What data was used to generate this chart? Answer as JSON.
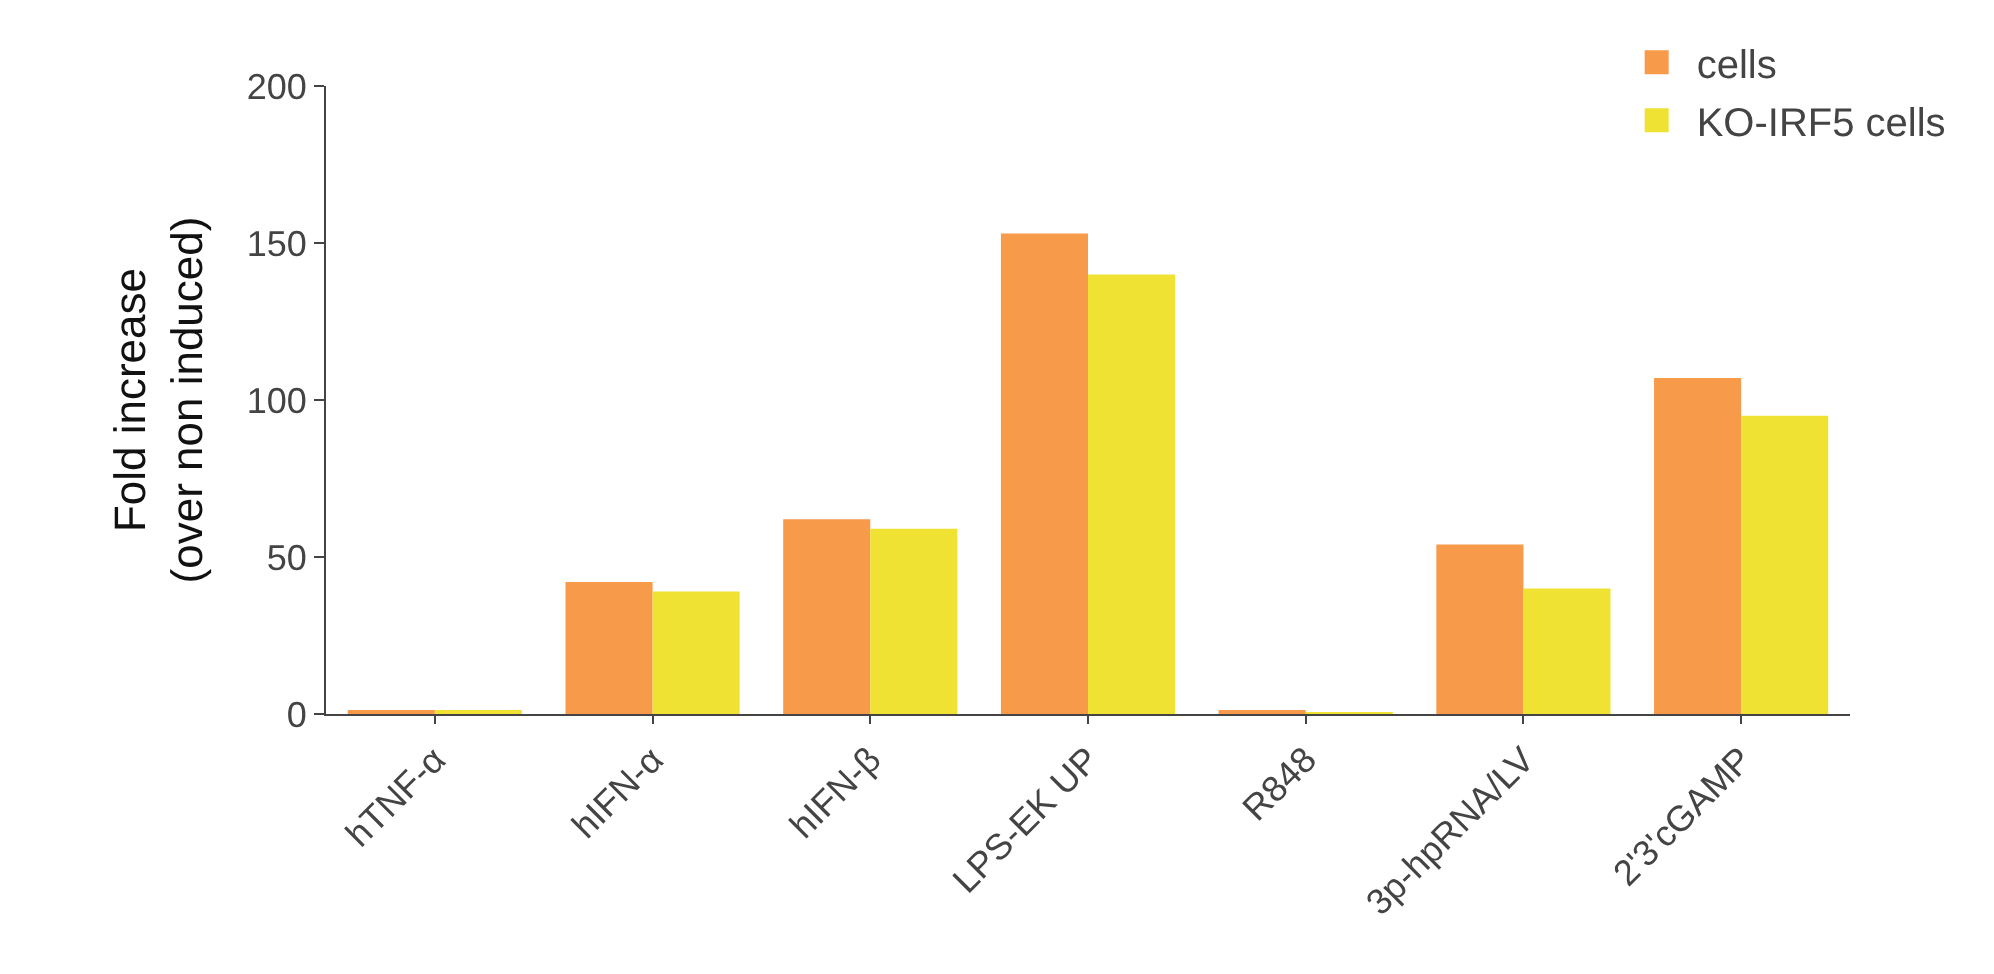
{
  "chart_data": {
    "type": "bar",
    "ylabel": "Fold increase\n(over non induced)",
    "categories": [
      "hTNF-α",
      "hIFN-α",
      "hIFN-β",
      "LPS-EK UP",
      "R848",
      "3p-hpRNA/LV",
      "2'3'cGAMP"
    ],
    "series": [
      {
        "name": "cells",
        "color": "#f79a4a",
        "values": [
          1,
          42,
          62,
          153,
          1,
          54,
          107
        ]
      },
      {
        "name": "KO-IRF5 cells",
        "color": "#f0e232",
        "values": [
          1,
          39,
          59,
          140,
          0.5,
          40,
          95
        ]
      }
    ],
    "ylim": [
      0,
      200
    ],
    "yticks": [
      0,
      50,
      100,
      150,
      200
    ],
    "legend": "top right"
  }
}
